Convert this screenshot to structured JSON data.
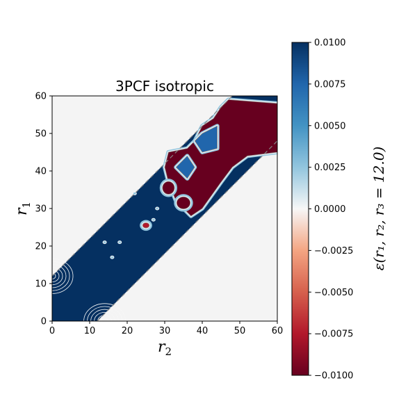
{
  "chart_data": {
    "type": "heatmap",
    "title": "3PCF isotropic",
    "xlabel": {
      "symbol": "r",
      "subscript": "2"
    },
    "ylabel": {
      "symbol": "r",
      "subscript": "1"
    },
    "colorbar_label": "ε(r₁, r₂, r₃ = 12.0)",
    "xlim": [
      0,
      60
    ],
    "ylim": [
      0,
      60
    ],
    "x_ticks": [
      "0",
      "10",
      "20",
      "30",
      "40",
      "50",
      "60"
    ],
    "y_ticks": [
      "0",
      "10",
      "20",
      "30",
      "40",
      "50",
      "60"
    ],
    "colorbar": {
      "range": [
        -0.01,
        0.01
      ],
      "ticks": [
        "0.0100",
        "0.0075",
        "0.0050",
        "0.0025",
        "0.0000",
        "−0.0025",
        "−0.0050",
        "−0.0075",
        "−0.0100"
      ],
      "colormap": "RdBu"
    },
    "valid_band": {
      "r1_minus_r2_max": 12.0,
      "description": "|r1 − r2| ≤ r3"
    },
    "regions": [
      {
        "label": "saturated positive",
        "value": 0.01,
        "r2_range": [
          0,
          30
        ],
        "r1_range": [
          0,
          40
        ]
      },
      {
        "label": "saturated negative",
        "value": -0.01,
        "polygon_r2_r1": [
          [
            47,
            59
          ],
          [
            60,
            58
          ],
          [
            60,
            45
          ],
          [
            52,
            44
          ],
          [
            48,
            41
          ],
          [
            45,
            37
          ],
          [
            40,
            30
          ],
          [
            37,
            28
          ],
          [
            33,
            32
          ],
          [
            31,
            37
          ],
          [
            30,
            41
          ],
          [
            31,
            45
          ],
          [
            36,
            46
          ],
          [
            38,
            48
          ],
          [
            40,
            52
          ],
          [
            43,
            54
          ],
          [
            45,
            57
          ]
        ]
      },
      {
        "label": "blue patch",
        "value": 0.0085,
        "polygon_r2_r1": [
          [
            40,
            50
          ],
          [
            44,
            52
          ],
          [
            44,
            46
          ],
          [
            40,
            45
          ],
          [
            38,
            48
          ]
        ]
      },
      {
        "label": "blue patch",
        "value": 0.008,
        "polygon_r2_r1": [
          [
            33,
            41
          ],
          [
            36,
            44
          ],
          [
            38,
            41
          ],
          [
            36,
            38
          ]
        ]
      },
      {
        "label": "red blob",
        "value": -0.009,
        "center": [
          31,
          35.5
        ],
        "radius": [
          1.6,
          1.7
        ]
      },
      {
        "label": "red blob",
        "value": -0.009,
        "center": [
          35,
          31.5
        ],
        "radius": [
          1.8,
          1.6
        ]
      },
      {
        "label": "red blob",
        "value": -0.008,
        "center": [
          25,
          25.5
        ],
        "radius": [
          0.9,
          0.7
        ]
      }
    ],
    "contour_centers": [
      [
        0,
        12
      ],
      [
        14,
        0
      ]
    ]
  },
  "colors": {
    "background": "#f4f4f4",
    "dark_blue": "#053061",
    "mid_blue": "#2166ac",
    "light_blue": "#92c5de",
    "white": "#f7f7f7",
    "light_red": "#f4a582",
    "mid_red": "#b2182b",
    "dark_red": "#67001f",
    "outline": "#888888"
  }
}
